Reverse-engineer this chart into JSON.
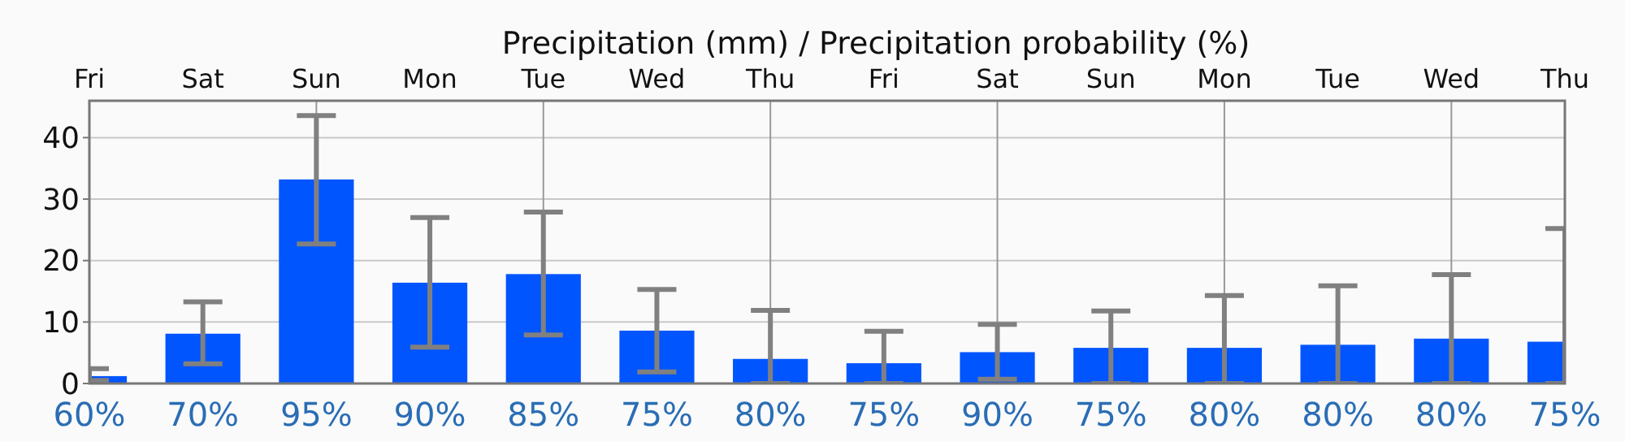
{
  "chart_data": {
    "type": "bar",
    "title": "Precipitation (mm) / Precipitation probability (%)",
    "categories": [
      "Fri",
      "Sat",
      "Sun",
      "Mon",
      "Tue",
      "Wed",
      "Thu",
      "Fri",
      "Sat",
      "Sun",
      "Mon",
      "Tue",
      "Wed",
      "Thu"
    ],
    "values": [
      1.2,
      8.1,
      33.2,
      16.4,
      17.8,
      8.6,
      4.0,
      3.3,
      5.1,
      5.8,
      5.8,
      6.3,
      7.3,
      6.8
    ],
    "errors": [
      [
        0.5,
        2.4
      ],
      [
        3.2,
        13.3
      ],
      [
        22.7,
        43.6
      ],
      [
        5.9,
        27.0
      ],
      [
        7.9,
        27.9
      ],
      [
        1.9,
        15.3
      ],
      [
        0,
        11.9
      ],
      [
        0,
        8.5
      ],
      [
        0.7,
        9.6
      ],
      [
        0,
        11.8
      ],
      [
        0,
        14.3
      ],
      [
        0,
        15.9
      ],
      [
        0,
        17.7
      ],
      [
        0,
        25.2
      ]
    ],
    "color": "#0055ff",
    "annotations": [
      "60%",
      "70%",
      "95%",
      "90%",
      "85%",
      "75%",
      "80%",
      "75%",
      "90%",
      "75%",
      "80%",
      "80%",
      "80%",
      "75%"
    ],
    "ylim": [
      0,
      46
    ],
    "yticks": [
      0,
      10,
      20,
      30,
      40
    ],
    "grid": true
  }
}
